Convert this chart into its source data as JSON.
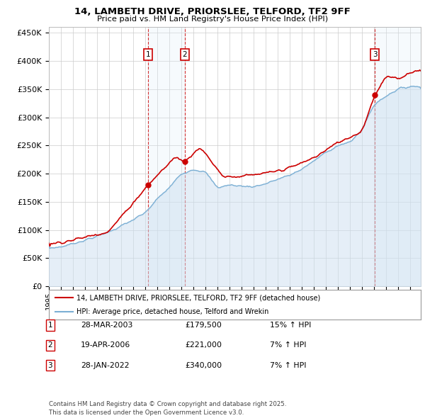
{
  "title": "14, LAMBETH DRIVE, PRIORSLEE, TELFORD, TF2 9FF",
  "subtitle": "Price paid vs. HM Land Registry's House Price Index (HPI)",
  "ylim": [
    0,
    460000
  ],
  "yticks": [
    0,
    50000,
    100000,
    150000,
    200000,
    250000,
    300000,
    350000,
    400000,
    450000
  ],
  "ytick_labels": [
    "£0",
    "£50K",
    "£100K",
    "£150K",
    "£200K",
    "£250K",
    "£300K",
    "£350K",
    "£400K",
    "£450K"
  ],
  "xlim_start": 1995.0,
  "xlim_end": 2025.9,
  "legend_line1": "14, LAMBETH DRIVE, PRIORSLEE, TELFORD, TF2 9FF (detached house)",
  "legend_line2": "HPI: Average price, detached house, Telford and Wrekin",
  "transactions": [
    {
      "num": 1,
      "date": "28-MAR-2003",
      "price": 179500,
      "pct": "15%",
      "dir": "↑",
      "x": 2003.23
    },
    {
      "num": 2,
      "date": "19-APR-2006",
      "price": 221000,
      "pct": "7%",
      "dir": "↑",
      "x": 2006.3
    },
    {
      "num": 3,
      "date": "28-JAN-2022",
      "price": 340000,
      "pct": "7%",
      "dir": "↑",
      "x": 2022.08
    }
  ],
  "footer": "Contains HM Land Registry data © Crown copyright and database right 2025.\nThis data is licensed under the Open Government Licence v3.0.",
  "hpi_color": "#7bafd4",
  "hpi_fill_color": "#ccdff0",
  "price_color": "#cc0000",
  "shade_color": "#ddeef8",
  "box_color": "#cc0000",
  "grid_color": "#cccccc",
  "bg_color": "#ffffff",
  "hpi_anchors_x": [
    1995.0,
    1996.0,
    1997.0,
    1998.0,
    1999.0,
    2000.0,
    2001.0,
    2002.0,
    2003.0,
    2004.0,
    2005.0,
    2006.0,
    2007.0,
    2008.0,
    2009.0,
    2010.0,
    2011.0,
    2012.0,
    2013.0,
    2014.0,
    2015.0,
    2016.0,
    2017.0,
    2018.0,
    2019.0,
    2020.0,
    2021.0,
    2022.0,
    2023.0,
    2024.0,
    2025.0
  ],
  "hpi_anchors_y": [
    68000,
    70000,
    76000,
    82000,
    89000,
    97000,
    107000,
    118000,
    130000,
    155000,
    175000,
    200000,
    208000,
    203000,
    175000,
    180000,
    178000,
    177000,
    182000,
    190000,
    197000,
    208000,
    222000,
    238000,
    250000,
    255000,
    278000,
    322000,
    338000,
    350000,
    355000
  ],
  "price_anchors_x": [
    1995.0,
    1997.0,
    2000.0,
    2003.23,
    2005.5,
    2006.3,
    2007.5,
    2008.5,
    2009.5,
    2011.0,
    2013.0,
    2015.0,
    2017.0,
    2019.0,
    2021.0,
    2022.08,
    2023.0,
    2024.0,
    2025.2
  ],
  "price_anchors_y": [
    75000,
    82000,
    98000,
    179500,
    230000,
    221000,
    248000,
    222000,
    195000,
    195000,
    200000,
    210000,
    228000,
    255000,
    275000,
    340000,
    372000,
    368000,
    382000
  ]
}
